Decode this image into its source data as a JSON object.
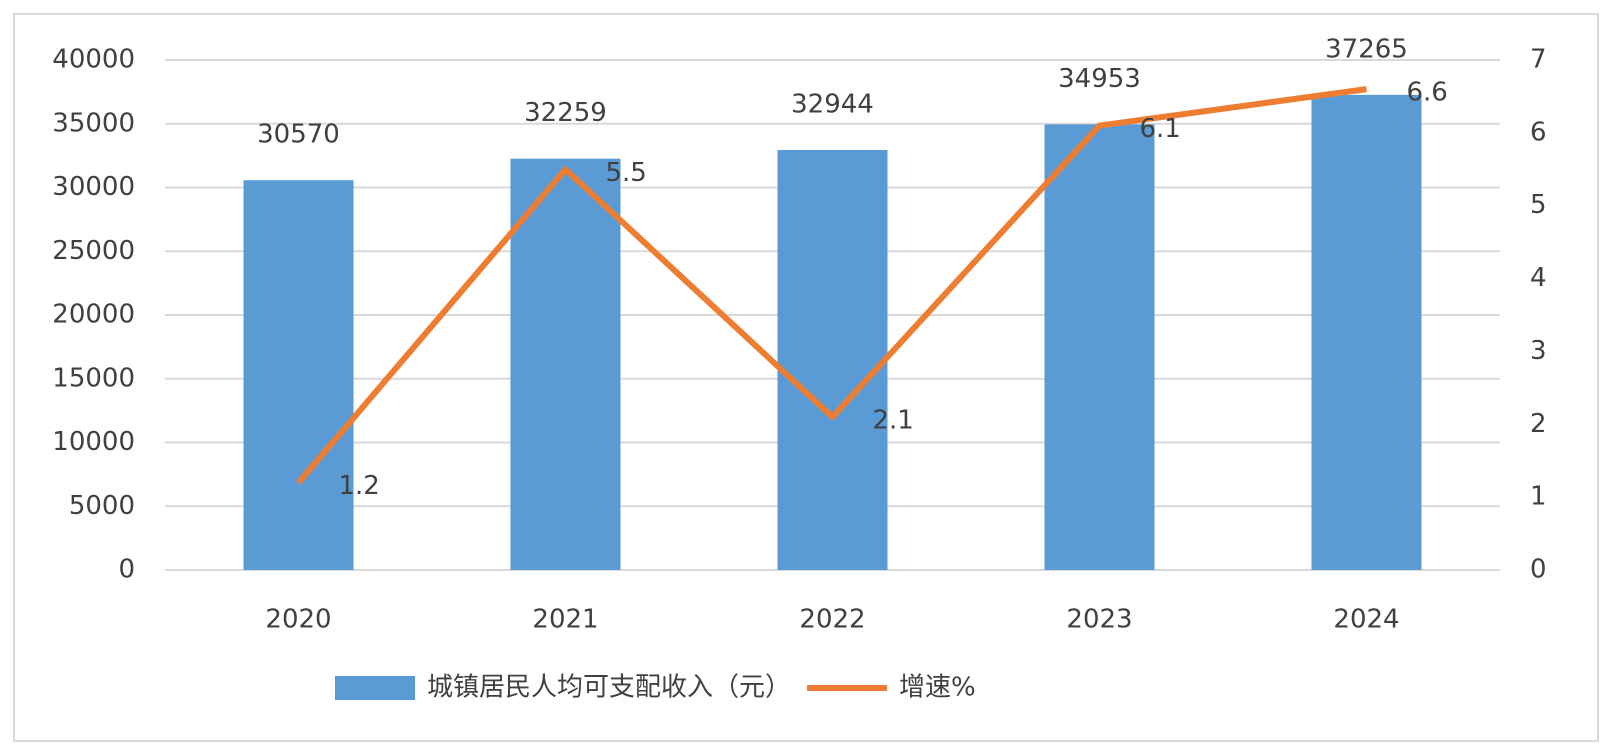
{
  "chart_data": {
    "type": "bar",
    "categories": [
      "2020",
      "2021",
      "2022",
      "2023",
      "2024"
    ],
    "series": [
      {
        "name": "城镇居民人均可支配收入（元）",
        "type": "bar",
        "color": "#5b9bd5",
        "values": [
          30570,
          32259,
          32944,
          34953,
          37265
        ]
      },
      {
        "name": "增速%",
        "type": "line",
        "axis": "y2",
        "color": "#ed7d31",
        "values": [
          1.2,
          5.5,
          2.1,
          6.1,
          6.6
        ]
      }
    ],
    "ylim": [
      0,
      40000
    ],
    "yticks": [
      0,
      5000,
      10000,
      15000,
      20000,
      25000,
      30000,
      35000,
      40000
    ],
    "y2lim": [
      0,
      7
    ],
    "y2ticks": [
      0,
      1,
      2,
      3,
      4,
      5,
      6,
      7
    ],
    "grid": true,
    "legend": "bottom"
  }
}
